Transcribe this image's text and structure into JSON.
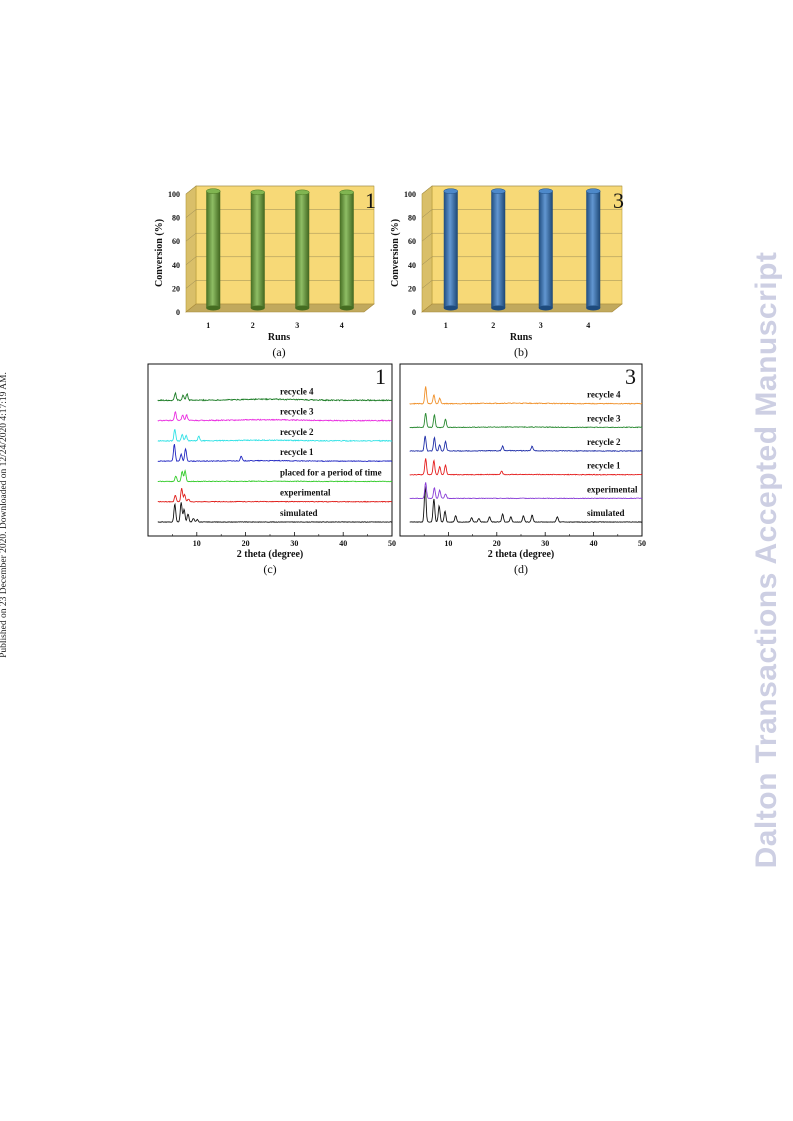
{
  "side_note": "Published on 23 December 2020. Downloaded on 12/24/2020 4:17:19 AM.",
  "watermark": "Dalton Transactions Accepted Manuscript",
  "chart_data": [
    {
      "type": "bar",
      "panel": "(a)",
      "corner_label": "1",
      "xlabel": "Runs",
      "ylabel": "Conversion (%)",
      "categories": [
        "1",
        "2",
        "3",
        "4"
      ],
      "values": [
        99,
        98,
        98,
        98
      ],
      "ylim": [
        0,
        100
      ],
      "yticks": [
        "0",
        "20",
        "40",
        "60",
        "80",
        "100"
      ],
      "bar_color": "#6aa832",
      "backdrop_color": "#f7d977",
      "grid": true
    },
    {
      "type": "bar",
      "panel": "(b)",
      "corner_label": "3",
      "xlabel": "Runs",
      "ylabel": "Conversion (%)",
      "categories": [
        "1",
        "2",
        "3",
        "4"
      ],
      "values": [
        99,
        99,
        99,
        99
      ],
      "ylim": [
        0,
        100
      ],
      "yticks": [
        "0",
        "20",
        "40",
        "60",
        "80",
        "100"
      ],
      "bar_color": "#2e74c1",
      "backdrop_color": "#f7d977",
      "grid": true
    },
    {
      "type": "line",
      "panel": "(c)",
      "corner_label": "1",
      "xlabel": "2 theta (degree)",
      "xlim": [
        0,
        50
      ],
      "xticks": [
        "10",
        "20",
        "30",
        "40",
        "50"
      ],
      "grid": false,
      "series": [
        {
          "name": "simulated",
          "color": "#111111",
          "peaks": [
            [
              5.5,
              1.0
            ],
            [
              6.8,
              1.1
            ],
            [
              7.4,
              0.7
            ],
            [
              8.2,
              0.45
            ],
            [
              9.3,
              0.2
            ],
            [
              10.1,
              0.15
            ]
          ],
          "hump": 0.0
        },
        {
          "name": "experimental",
          "color": "#e0201c",
          "peaks": [
            [
              5.6,
              0.35
            ],
            [
              6.9,
              0.75
            ],
            [
              7.5,
              0.4
            ],
            [
              8.3,
              0.15
            ]
          ],
          "hump": 0.05
        },
        {
          "name": "placed for a period of time",
          "color": "#35cc2c",
          "peaks": [
            [
              5.7,
              0.3
            ],
            [
              7.0,
              0.55
            ],
            [
              7.6,
              0.6
            ]
          ],
          "hump": 0.1
        },
        {
          "name": "recycle 1",
          "color": "#2127c2",
          "peaks": [
            [
              5.4,
              0.95
            ],
            [
              6.8,
              0.4
            ],
            [
              7.7,
              0.7
            ],
            [
              19.1,
              0.25
            ]
          ],
          "hump": 0.2
        },
        {
          "name": "recycle 2",
          "color": "#33e2e6",
          "peaks": [
            [
              5.5,
              0.65
            ],
            [
              7.0,
              0.35
            ],
            [
              7.8,
              0.3
            ],
            [
              10.4,
              0.25
            ]
          ],
          "hump": 0.3
        },
        {
          "name": "recycle 3",
          "color": "#ea2fe0",
          "peaks": [
            [
              5.6,
              0.5
            ],
            [
              7.1,
              0.3
            ],
            [
              7.9,
              0.3
            ]
          ],
          "hump": 0.4
        },
        {
          "name": "recycle 4",
          "color": "#1b7c25",
          "peaks": [
            [
              5.6,
              0.4
            ],
            [
              7.2,
              0.3
            ],
            [
              8.0,
              0.35
            ]
          ],
          "hump": 0.5
        }
      ]
    },
    {
      "type": "line",
      "panel": "(d)",
      "corner_label": "3",
      "xlabel": "2 theta (degree)",
      "xlim": [
        0,
        50
      ],
      "xticks": [
        "10",
        "20",
        "30",
        "40",
        "50"
      ],
      "grid": false,
      "series": [
        {
          "name": "simulated",
          "color": "#111111",
          "peaks": [
            [
              5.2,
              2.0
            ],
            [
              7.0,
              1.3
            ],
            [
              8.1,
              0.9
            ],
            [
              9.3,
              0.6
            ],
            [
              11.5,
              0.35
            ],
            [
              14.8,
              0.25
            ],
            [
              16.3,
              0.2
            ],
            [
              18.5,
              0.3
            ],
            [
              21.2,
              0.45
            ],
            [
              22.9,
              0.3
            ],
            [
              25.5,
              0.35
            ],
            [
              27.3,
              0.4
            ],
            [
              32.5,
              0.3
            ]
          ],
          "hump": 0.0
        },
        {
          "name": "experimental",
          "color": "#8a3fd7",
          "peaks": [
            [
              5.3,
              0.9
            ],
            [
              7.1,
              0.6
            ],
            [
              8.2,
              0.45
            ],
            [
              9.4,
              0.25
            ]
          ],
          "hump": 0.0
        },
        {
          "name": "recycle 1",
          "color": "#e52020",
          "peaks": [
            [
              5.3,
              0.9
            ],
            [
              7.0,
              0.8
            ],
            [
              8.2,
              0.45
            ],
            [
              9.4,
              0.55
            ],
            [
              21.0,
              0.2
            ]
          ],
          "hump": 0.1
        },
        {
          "name": "recycle 2",
          "color": "#1f2ea8",
          "peaks": [
            [
              5.2,
              0.85
            ],
            [
              7.1,
              0.75
            ],
            [
              8.2,
              0.35
            ],
            [
              9.4,
              0.55
            ],
            [
              21.2,
              0.25
            ],
            [
              27.3,
              0.25
            ]
          ],
          "hump": 0.15
        },
        {
          "name": "recycle 3",
          "color": "#2a8a32",
          "peaks": [
            [
              5.3,
              0.8
            ],
            [
              7.1,
              0.7
            ],
            [
              9.4,
              0.45
            ]
          ],
          "hump": 0.15
        },
        {
          "name": "recycle 4",
          "color": "#f0912b",
          "peaks": [
            [
              5.3,
              0.95
            ],
            [
              7.0,
              0.5
            ],
            [
              8.2,
              0.3
            ]
          ],
          "hump": 0.2
        }
      ]
    }
  ]
}
